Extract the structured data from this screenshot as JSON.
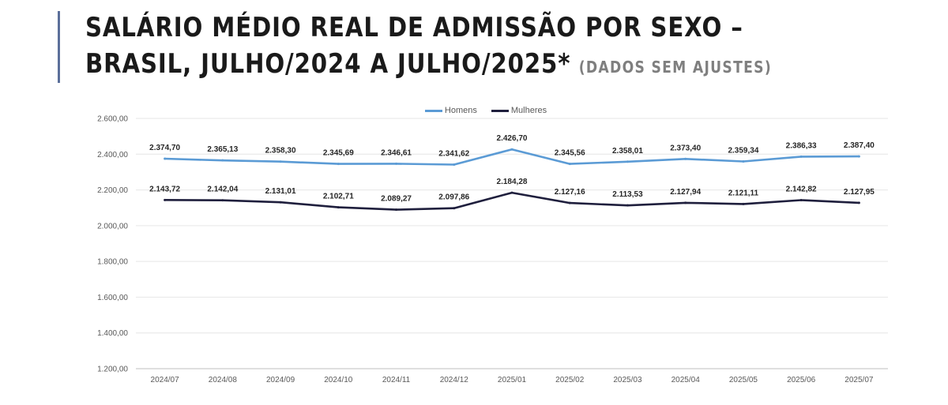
{
  "header": {
    "title_line1": "SALÁRIO MÉDIO REAL DE ADMISSÃO POR SEXO –",
    "title_line2": "BRASIL, JULHO/2024 A JULHO/2025*",
    "title_note": "(DADOS SEM AJUSTES)"
  },
  "colors": {
    "homens": "#5b9bd5",
    "mulheres": "#1f1f3d",
    "grid": "#e6e6e6",
    "accent": "#5b6f9a"
  },
  "chart_data": {
    "type": "line",
    "categories": [
      "2024/07",
      "2024/08",
      "2024/09",
      "2024/10",
      "2024/11",
      "2024/12",
      "2025/01",
      "2025/02",
      "2025/03",
      "2025/04",
      "2025/05",
      "2025/06",
      "2025/07"
    ],
    "series": [
      {
        "name": "Homens",
        "values": [
          2374.7,
          2365.13,
          2358.3,
          2345.69,
          2346.61,
          2341.62,
          2426.7,
          2345.56,
          2358.01,
          2373.4,
          2359.34,
          2386.33,
          2387.4
        ],
        "labels": [
          "2.374,70",
          "2.365,13",
          "2.358,30",
          "2.345,69",
          "2.346,61",
          "2.341,62",
          "2.426,70",
          "2.345,56",
          "2.358,01",
          "2.373,40",
          "2.359,34",
          "2.386,33",
          "2.387,40"
        ]
      },
      {
        "name": "Mulheres",
        "values": [
          2143.72,
          2142.04,
          2131.01,
          2102.71,
          2089.27,
          2097.86,
          2184.28,
          2127.16,
          2113.53,
          2127.94,
          2121.11,
          2142.82,
          2127.95
        ],
        "labels": [
          "2.143,72",
          "2.142,04",
          "2.131,01",
          "2.102,71",
          "2.089,27",
          "2.097,86",
          "2.184,28",
          "2.127,16",
          "2.113,53",
          "2.127,94",
          "2.121,11",
          "2.142,82",
          "2.127,95"
        ]
      }
    ],
    "ylim": [
      1200,
      2600
    ],
    "yticks": [
      1200,
      1400,
      1600,
      1800,
      2000,
      2200,
      2400,
      2600
    ],
    "ytick_labels": [
      "1.200,00",
      "1.400,00",
      "1.600,00",
      "1.800,00",
      "2.000,00",
      "2.200,00",
      "2.400,00",
      "2.600,00"
    ],
    "grid": true,
    "legend_position": "top-center"
  }
}
